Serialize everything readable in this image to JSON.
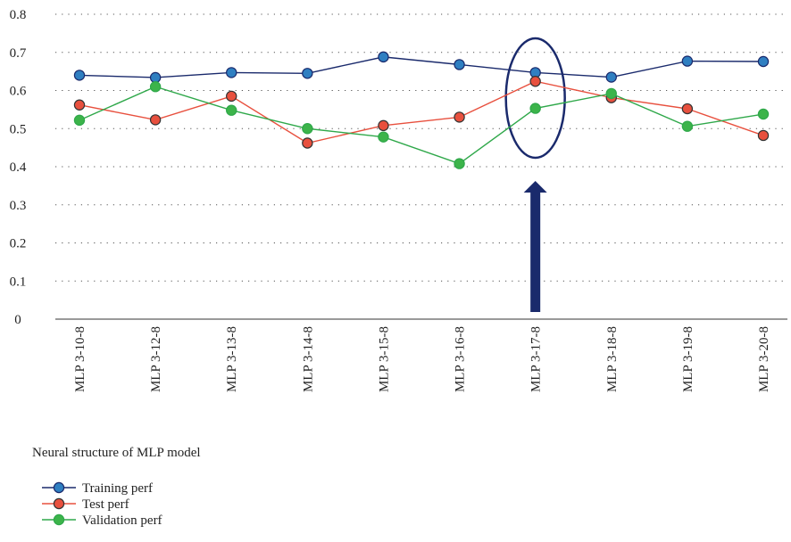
{
  "chart_data": {
    "type": "line",
    "categories": [
      "MLP 3-10-8",
      "MLP 3-12-8",
      "MLP 3-13-8",
      "MLP 3-14-8",
      "MLP 3-15-8",
      "MLP 3-16-8",
      "MLP 3-17-8",
      "MLP 3-18-8",
      "MLP 3-19-8",
      "MLP 3-20-8"
    ],
    "series": [
      {
        "name": "Training perf",
        "color": "#2f7fc1",
        "values": [
          0.64,
          0.634,
          0.647,
          0.645,
          0.688,
          0.668,
          0.647,
          0.635,
          0.677,
          0.676
        ]
      },
      {
        "name": "Test perf",
        "color": "#e8503e",
        "values": [
          0.562,
          0.523,
          0.585,
          0.462,
          0.508,
          0.53,
          0.624,
          0.581,
          0.552,
          0.482
        ]
      },
      {
        "name": "Validation perf",
        "color": "#3cb44a",
        "values": [
          0.522,
          0.61,
          0.548,
          0.5,
          0.478,
          0.408,
          0.553,
          0.592,
          0.506,
          0.538
        ]
      }
    ],
    "line_colors": {
      "Training perf": "#1a2a6c",
      "Test perf": "#e8503e",
      "Validation perf": "#2fa84a"
    },
    "xlabel": "Neural structure of MLP model",
    "ylabel": "",
    "ylim": [
      0,
      0.8
    ],
    "yticks": [
      "0",
      "0.1",
      "0.2",
      "0.3",
      "0.4",
      "0.5",
      "0.6",
      "0.7",
      "0.8"
    ],
    "grid": "horizontal dotted",
    "legend_position": "bottom-left",
    "annotation": {
      "type": "ellipse-and-arrow",
      "highlight_category": "MLP 3-17-8",
      "color": "#1a2a6c"
    }
  }
}
